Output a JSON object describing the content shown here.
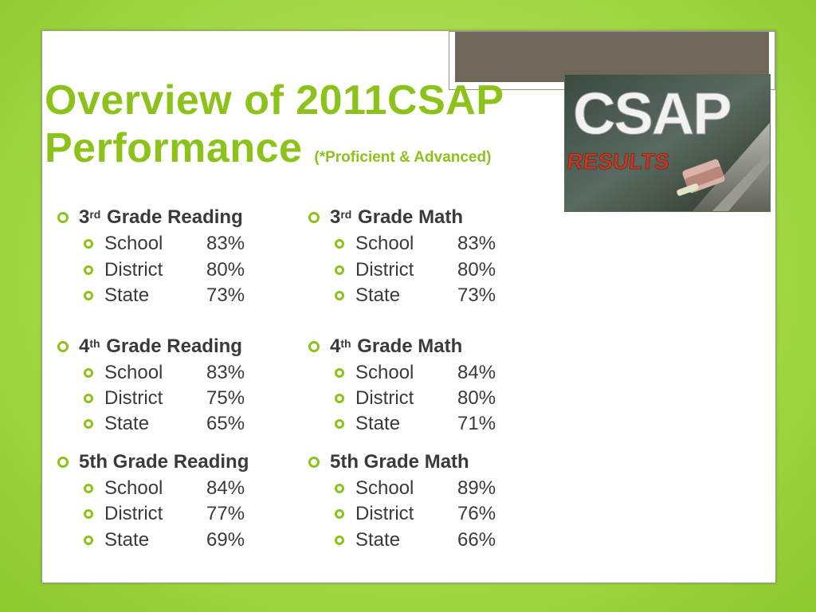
{
  "title": {
    "line1": "Overview of 2011CSAP",
    "line2": "Performance",
    "note": "(*Proficient & Advanced)"
  },
  "image": {
    "main_text": "CSAP",
    "sub_text": "RESULTS"
  },
  "columns": [
    {
      "groups": [
        {
          "num": "3",
          "suffix": "rd",
          "heading": "Grade Reading",
          "rows": [
            {
              "label": "School",
              "value": "83%"
            },
            {
              "label": "District",
              "value": "80%"
            },
            {
              "label": "State",
              "value": "73%"
            }
          ]
        },
        {
          "num": "4",
          "suffix": "th",
          "heading": "Grade Reading",
          "rows": [
            {
              "label": "School",
              "value": "83%"
            },
            {
              "label": "District",
              "value": "75%"
            },
            {
              "label": "State",
              "value": "65%"
            }
          ]
        },
        {
          "num": "",
          "suffix": "",
          "heading": "5th Grade Reading",
          "rows": [
            {
              "label": "School",
              "value": "84%"
            },
            {
              "label": "District",
              "value": "77%"
            },
            {
              "label": "State",
              "value": "69%"
            }
          ]
        }
      ]
    },
    {
      "groups": [
        {
          "num": "3",
          "suffix": "rd",
          "heading": "Grade Math",
          "rows": [
            {
              "label": "School",
              "value": "83%"
            },
            {
              "label": "District",
              "value": "80%"
            },
            {
              "label": "State",
              "value": "73%"
            }
          ]
        },
        {
          "num": "4",
          "suffix": "th",
          "heading": "Grade Math",
          "rows": [
            {
              "label": "School",
              "value": "84%"
            },
            {
              "label": "District",
              "value": "80%"
            },
            {
              "label": "State",
              "value": "71%"
            }
          ]
        },
        {
          "num": "",
          "suffix": "",
          "heading": "5th Grade Math",
          "rows": [
            {
              "label": "School",
              "value": "89%"
            },
            {
              "label": "District",
              "value": "76%"
            },
            {
              "label": "State",
              "value": "66%"
            }
          ]
        }
      ]
    }
  ],
  "colors": {
    "accent": "#8cc21a",
    "text": "#3a3a3a",
    "results_red": "#c23a22"
  }
}
